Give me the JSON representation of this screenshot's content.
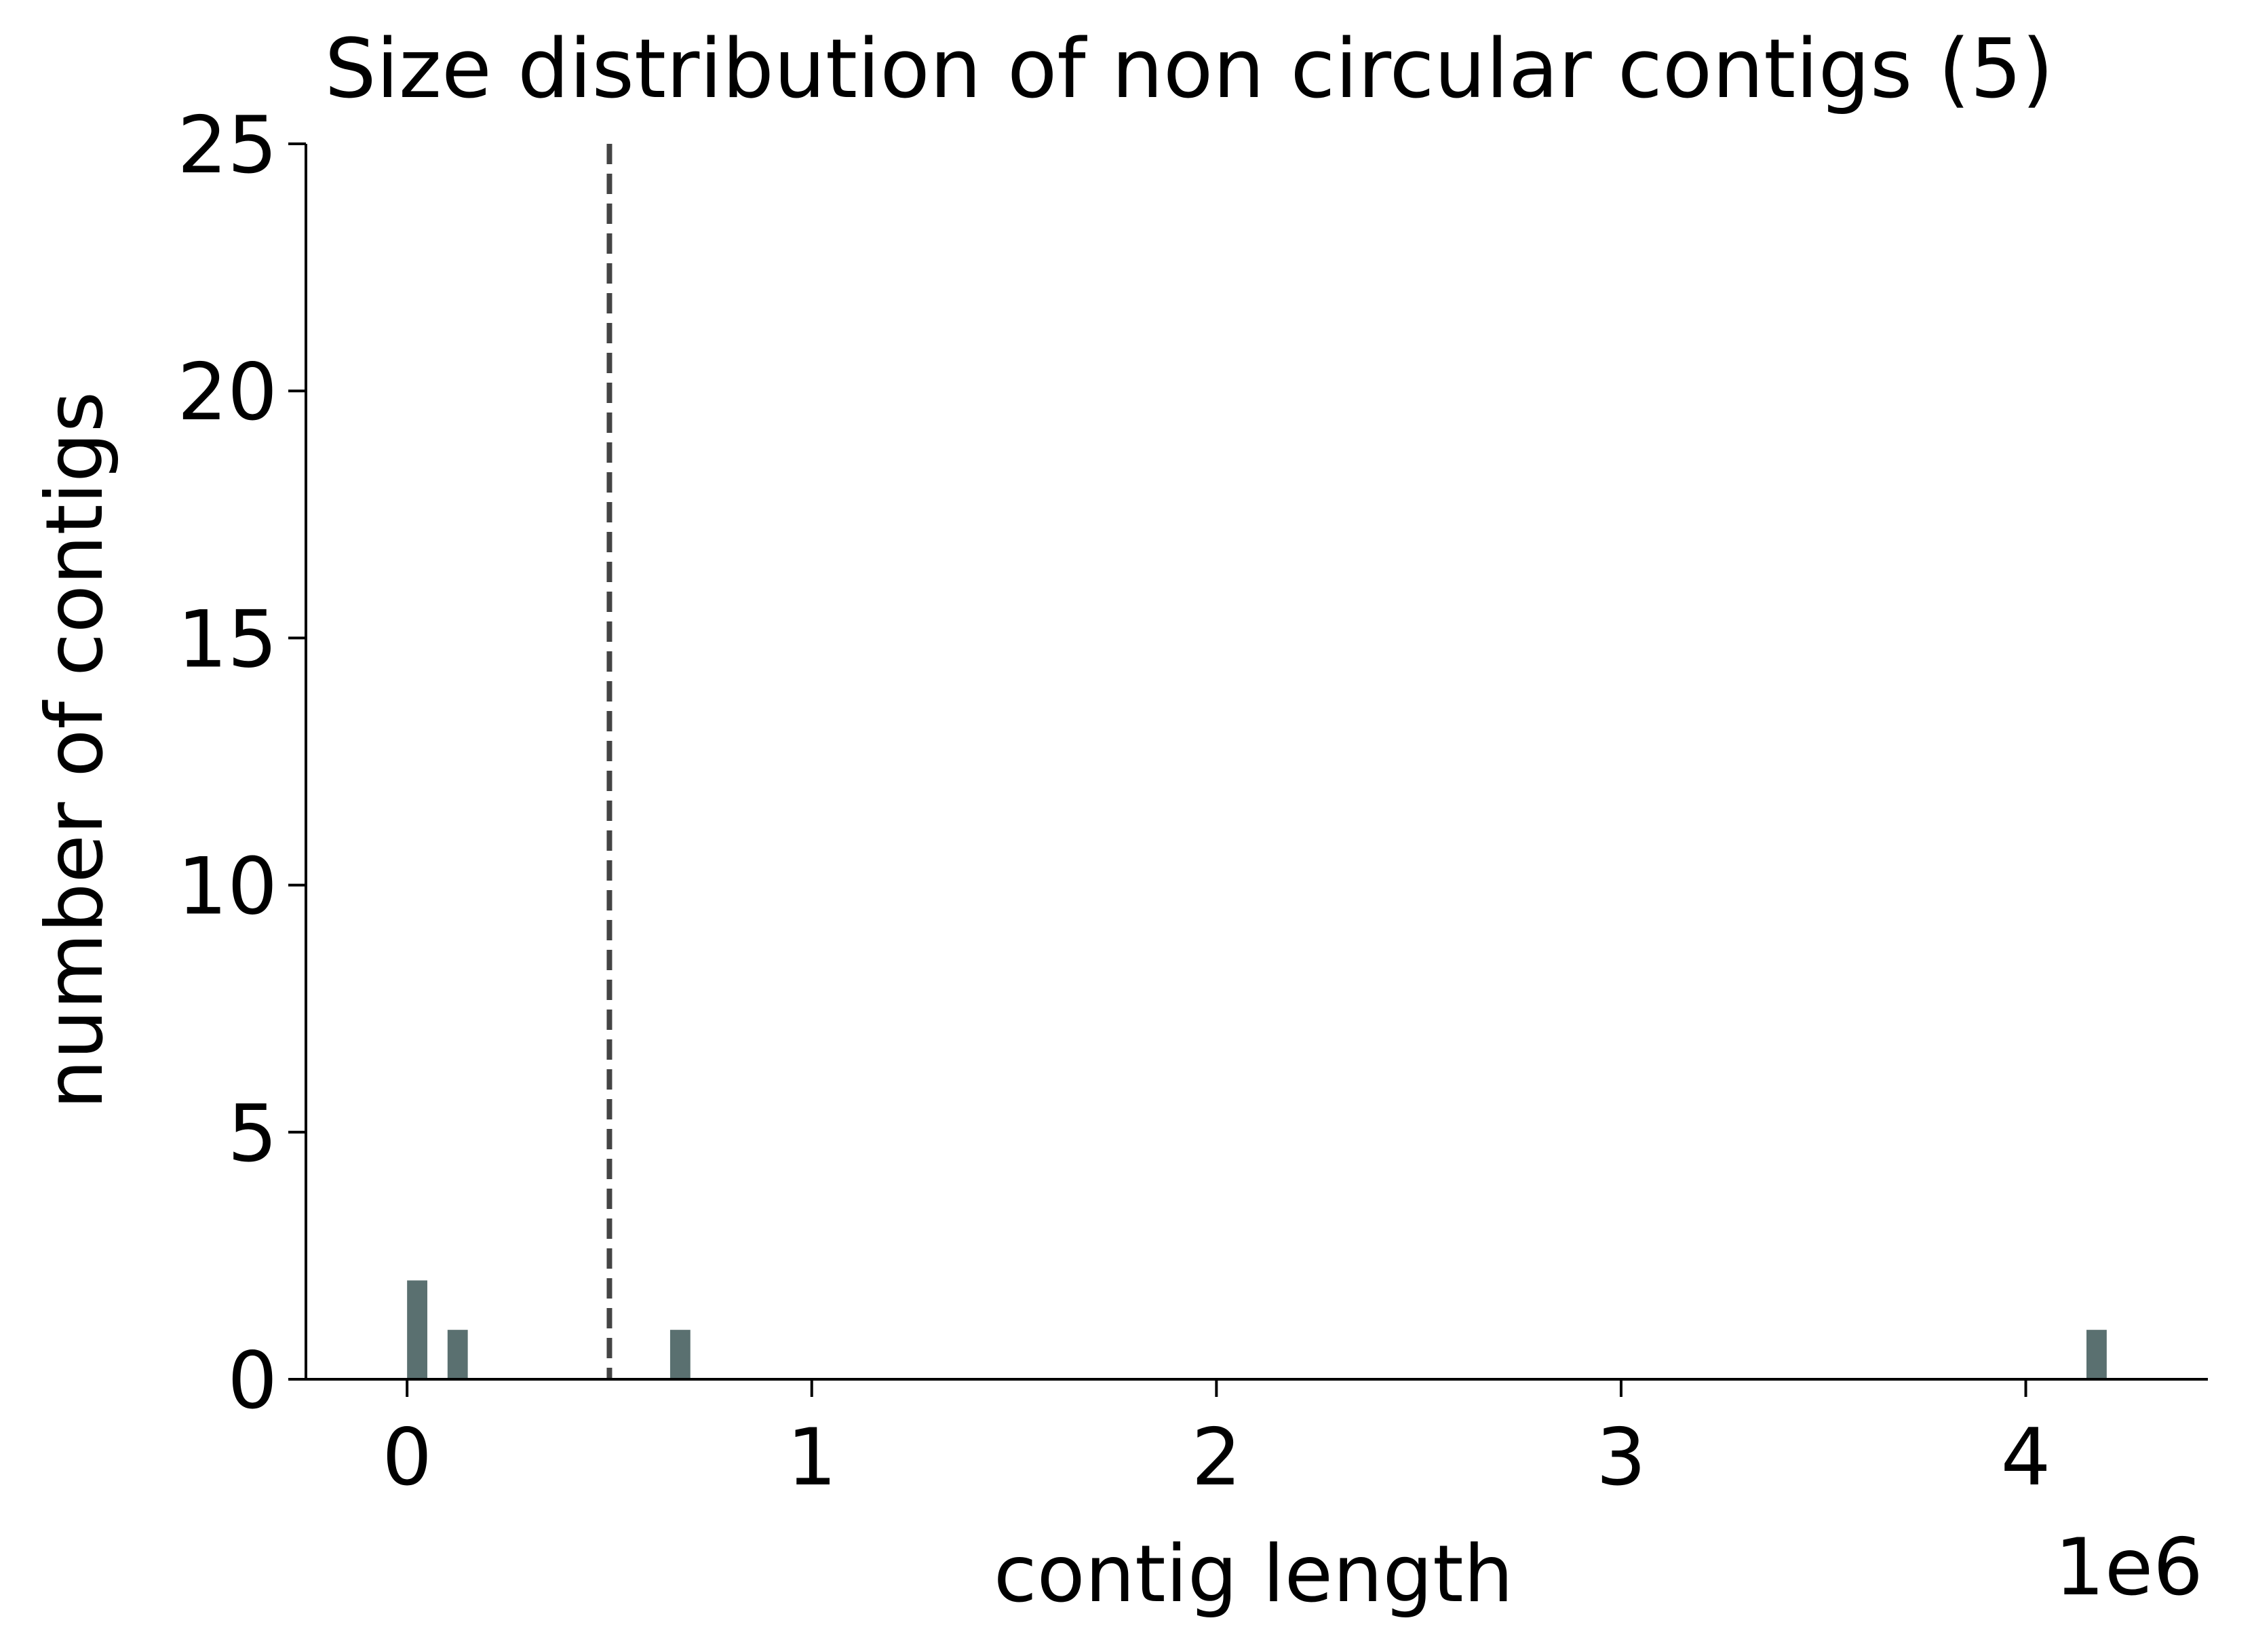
{
  "chart_data": {
    "type": "bar",
    "title": "Size distribution of non circular contigs (5)",
    "xlabel": "contig length",
    "ylabel": "number of contigs",
    "x_offset_label": "1e6",
    "x_scale": 1000000,
    "xlim": [
      -250000,
      4450000
    ],
    "ylim": [
      0,
      25
    ],
    "x_ticks": [
      0,
      1000000,
      2000000,
      3000000,
      4000000
    ],
    "x_tick_labels": [
      "0",
      "1",
      "2",
      "3",
      "4"
    ],
    "y_ticks": [
      0,
      5,
      10,
      15,
      20,
      25
    ],
    "y_tick_labels": [
      "0",
      "5",
      "10",
      "15",
      "20",
      "25"
    ],
    "bin_width": 50000,
    "bars": [
      {
        "x": 25000,
        "count": 2
      },
      {
        "x": 125000,
        "count": 1
      },
      {
        "x": 675000,
        "count": 1
      },
      {
        "x": 4175000,
        "count": 1
      }
    ],
    "reference_line": {
      "x": 500000,
      "style": "dashed",
      "color": "#444444"
    },
    "bar_color": "#5a7070",
    "grid": false,
    "legend": "none",
    "spines": [
      "left",
      "bottom"
    ]
  }
}
